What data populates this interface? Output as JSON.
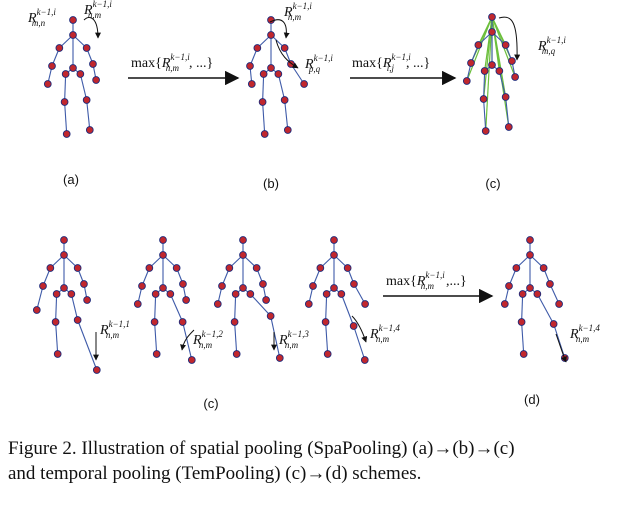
{
  "caption": {
    "line1": "Figure 2. Illustration of spatial pooling (SpaPooling) (a)→(b)→(c)",
    "line2": "and temporal pooling (TemPooling) (c)→(d) schemes."
  },
  "panels": {
    "a": {
      "label": "(a)",
      "ann1": {
        "base": "R",
        "sup": "k−1,i",
        "sub": "m,n"
      },
      "ann2": {
        "base": "R",
        "sup": "k−1,i",
        "sub": "n,m"
      }
    },
    "b": {
      "label": "(b)",
      "ann1": {
        "base": "R",
        "sup": "k−1,i",
        "sub": "n,m"
      },
      "ann2": {
        "base": "R",
        "sup": "k−1,i",
        "sub": "p,q"
      }
    },
    "c": {
      "label": "(c)",
      "ann1": {
        "base": "R",
        "sup": "k−1,i",
        "sub": "m,q"
      }
    },
    "c2": {
      "label": "(c)",
      "frames": [
        {
          "base": "R",
          "sup": "k−1,1",
          "sub": "n,m"
        },
        {
          "base": "R",
          "sup": "k−1,2",
          "sub": "n,m"
        },
        {
          "base": "R",
          "sup": "k−1,3",
          "sub": "n,m"
        },
        {
          "base": "R",
          "sup": "k−1,4",
          "sub": "n,m"
        }
      ]
    },
    "d": {
      "label": "(d)",
      "ann1": {
        "base": "R",
        "sup": "k−1,4",
        "sub": "n,m"
      }
    }
  },
  "arrows": {
    "a_to_b": {
      "pre": "max{",
      "base": "R",
      "sup": "k−1,i",
      "sub": "n,m",
      "post": ", ...}"
    },
    "b_to_c": {
      "pre": "max{",
      "base": "R",
      "sup": "k−1,i",
      "sub": "i,j",
      "post": ", ...}"
    },
    "c_to_d": {
      "pre": "max{",
      "base": "R",
      "sup": "k−1,i",
      "sub": "n,m",
      "post": ",...}"
    }
  },
  "colors": {
    "joint_fill": "#c1272d",
    "joint_stroke": "#1f2a7a",
    "bone": "#3e5aa8",
    "pool_edge": "#6cbf3c",
    "arrow": "#111111"
  }
}
